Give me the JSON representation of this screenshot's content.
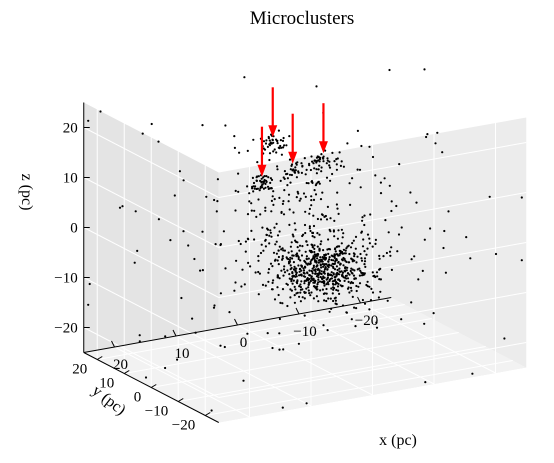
{
  "chart_data": {
    "type": "scatter",
    "projection": "3d",
    "title": "Microclusters",
    "xlabel": "x (pc)",
    "ylabel": "y (pc)",
    "zlabel": "z (pc)",
    "xlim": [
      -25,
      25
    ],
    "ylim": [
      -25,
      25
    ],
    "zlim": [
      -25,
      25
    ],
    "x_ticks": [
      {
        "value": 20,
        "label": "20"
      },
      {
        "value": 10,
        "label": "10"
      },
      {
        "value": 0,
        "label": "0"
      },
      {
        "value": -10,
        "label": "−10"
      },
      {
        "value": -20,
        "label": "−20"
      }
    ],
    "y_ticks": [
      {
        "value": -20,
        "label": "−20"
      },
      {
        "value": -10,
        "label": "−10"
      },
      {
        "value": 0,
        "label": "0"
      },
      {
        "value": 10,
        "label": "10"
      },
      {
        "value": 20,
        "label": "20"
      }
    ],
    "z_ticks": [
      {
        "value": 20,
        "label": "20"
      },
      {
        "value": 10,
        "label": "10"
      },
      {
        "value": 0,
        "label": "0"
      },
      {
        "value": -10,
        "label": "−10"
      },
      {
        "value": -20,
        "label": "−20"
      }
    ],
    "grid": true,
    "point_color": "#000000",
    "arrow_color": "#ff0000",
    "point_count": 1100,
    "groups": [
      {
        "count": 520,
        "center": [
          -3,
          0,
          -8
        ],
        "spread": [
          3.5,
          4.5,
          2.5
        ]
      },
      {
        "count": 150,
        "center": [
          -1,
          1,
          -4
        ],
        "spread": [
          6.5,
          7,
          4.5
        ]
      },
      {
        "count": 40,
        "center": [
          7,
          -4,
          21
        ],
        "spread": [
          1.2,
          1.2,
          1
        ]
      },
      {
        "count": 45,
        "center": [
          7,
          0,
          12
        ],
        "spread": [
          1.2,
          1,
          0.8
        ]
      },
      {
        "count": 35,
        "center": [
          2,
          0,
          13.5
        ],
        "spread": [
          1.2,
          1,
          0.8
        ]
      },
      {
        "count": 35,
        "center": [
          -3,
          0,
          14.5
        ],
        "spread": [
          1.2,
          1,
          0.8
        ]
      },
      {
        "count": 55,
        "center": [
          2,
          -5,
          13
        ],
        "spread": [
          5,
          5,
          3
        ]
      },
      {
        "count": 90,
        "center": [
          3,
          -3,
          3
        ],
        "spread": [
          8,
          8,
          6
        ]
      },
      {
        "count": 130,
        "center": [
          0,
          0,
          0
        ],
        "spread": [
          20,
          20,
          18
        ]
      }
    ],
    "arrows": [
      {
        "label": "",
        "x": 7,
        "y": -4,
        "z": 21
      },
      {
        "label": "",
        "x": 7,
        "y": 0,
        "z": 12
      },
      {
        "label": "",
        "x": 2,
        "y": 0,
        "z": 13.5
      },
      {
        "label": "",
        "x": -3,
        "y": 0,
        "z": 14.5
      }
    ]
  }
}
